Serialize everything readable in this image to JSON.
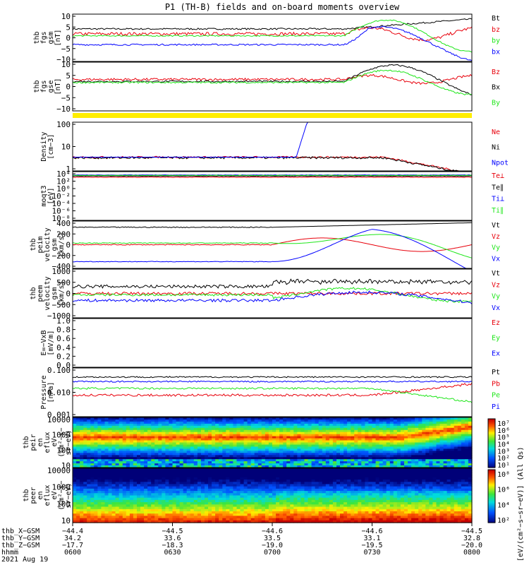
{
  "title": "P1 (TH-B) fields and on-board moments overview",
  "colors": {
    "black": "#000000",
    "red": "#e8000b",
    "green": "#1ee619",
    "blue": "#0000ff",
    "yellow": "#ffee00"
  },
  "chart_data": [
    {
      "type": "line",
      "ylabel_lines": [
        "thb",
        "fgs",
        "gsm",
        "[nT]"
      ],
      "yticks": [
        "10",
        "5",
        "0",
        "−5",
        "−10"
      ],
      "ylim": [
        -12,
        12
      ],
      "series": [
        {
          "name": "Bt",
          "color": "black",
          "base": 4.5,
          "jitter": 0.4,
          "late": "rise",
          "late_amp": 5
        },
        {
          "name": "bz",
          "color": "red",
          "base": 2.0,
          "jitter": 0.8,
          "late": "wave2",
          "late_amp": 3
        },
        {
          "name": "by",
          "color": "green",
          "base": 1.0,
          "jitter": 0.3,
          "late": "wave",
          "late_amp": 8
        },
        {
          "name": "bx",
          "color": "blue",
          "base": -3.5,
          "jitter": 0.4,
          "late": "wave3",
          "late_amp": 9
        }
      ]
    },
    {
      "type": "line",
      "ylabel_lines": [
        "thb",
        "fgs",
        "gse",
        "[nT]"
      ],
      "yticks": [
        "10",
        "5",
        "0",
        "−5",
        "−10"
      ],
      "ylim": [
        -12,
        12
      ],
      "series": [
        {
          "name": "Bz",
          "color": "red",
          "base": 3.5,
          "jitter": 0.6,
          "late": "wave2",
          "late_amp": 2
        },
        {
          "name": "Bx",
          "color": "black",
          "base": 2.5,
          "jitter": 0.4,
          "late": "wave3n",
          "late_amp": 8
        },
        {
          "name": "By",
          "color": "green",
          "base": 2.0,
          "jitter": 0.4,
          "late": "wave",
          "late_amp": 6
        }
      ]
    },
    {
      "type": "log",
      "ylabel_lines": [
        "Density",
        "[cm−3]"
      ],
      "yticks": [
        "100",
        "10",
        "1"
      ],
      "ylim_log": [
        0,
        2.3
      ],
      "series": [
        {
          "name": "Ne",
          "color": "red",
          "base": 0.65,
          "jitter": 0.04
        },
        {
          "name": "Ni",
          "color": "black",
          "base": 0.62,
          "jitter": 0.05
        },
        {
          "name": "Npot",
          "color": "blue",
          "base": 0.65,
          "jitter": 0.0
        }
      ]
    },
    {
      "type": "log",
      "ylabel_lines": [
        "moqt3",
        "[eV]"
      ],
      "yticks": [
        "10⁴",
        "10²",
        "10⁰",
        "10⁻²",
        "10⁻⁴",
        "10⁻⁶",
        "10⁻⁸"
      ],
      "ylim_log": [
        -8.5,
        4.5
      ],
      "series": [
        {
          "name": "Te⊥",
          "color": "red",
          "base": 3.0,
          "jitter": 0.05
        },
        {
          "name": "Te∥",
          "color": "black",
          "base": 3.3,
          "jitter": 0.05
        },
        {
          "name": "Ti⊥",
          "color": "blue",
          "base": 3.6,
          "jitter": 0.05
        },
        {
          "name": "Ti∥",
          "color": "green",
          "base": 3.5,
          "jitter": 0.05
        }
      ]
    },
    {
      "type": "line",
      "ylabel_lines": [
        "thb",
        "peim",
        "velocity",
        "gsm",
        "[km/s]"
      ],
      "yticks": [
        "400",
        "200",
        "0",
        "−200",
        "−400"
      ],
      "ylim": [
        -420,
        420
      ],
      "series": [
        {
          "name": "Vt",
          "color": "black",
          "base": 310,
          "jitter": 8
        },
        {
          "name": "Vz",
          "color": "red",
          "base": 0,
          "jitter": 8
        },
        {
          "name": "Vy",
          "color": "green",
          "base": 30,
          "jitter": 6
        },
        {
          "name": "Vx",
          "color": "blue",
          "base": -300,
          "jitter": 6
        }
      ]
    },
    {
      "type": "line",
      "ylabel_lines": [
        "thb",
        "peem",
        "velocity",
        "gsm",
        "[km/s]"
      ],
      "yticks": [
        "1000",
        "500",
        "0",
        "−500",
        "−1000"
      ],
      "ylim": [
        -1050,
        1050
      ],
      "series": [
        {
          "name": "Vt",
          "color": "black",
          "base": 300,
          "jitter": 70
        },
        {
          "name": "Vz",
          "color": "red",
          "base": 0,
          "jitter": 60
        },
        {
          "name": "Vy",
          "color": "green",
          "base": -60,
          "jitter": 50
        },
        {
          "name": "Vx",
          "color": "blue",
          "base": -300,
          "jitter": 60
        }
      ]
    },
    {
      "type": "empty",
      "ylabel_lines": [
        "E=−VxB",
        "[mV/m]"
      ],
      "yticks": [
        "1.0",
        "0.8",
        "0.6",
        "0.4",
        "0.2",
        "0.0"
      ],
      "ylim": [
        0,
        1
      ],
      "series": [
        {
          "name": "Ez",
          "color": "red"
        },
        {
          "name": "Ey",
          "color": "green"
        },
        {
          "name": "Ex",
          "color": "blue"
        }
      ]
    },
    {
      "type": "log",
      "ylabel_lines": [
        "Pressure",
        "[nPa]"
      ],
      "yticks": [
        "0.100",
        "0.010",
        "0.001"
      ],
      "ylim_log": [
        -3,
        -0.85
      ],
      "series": [
        {
          "name": "Pt",
          "color": "black",
          "base": -1.25,
          "jitter": 0.03
        },
        {
          "name": "Pb",
          "color": "red",
          "base": -2.05,
          "jitter": 0.05
        },
        {
          "name": "Pe",
          "color": "green",
          "base": -1.75,
          "jitter": 0.04
        },
        {
          "name": "Pi",
          "color": "blue",
          "base": -1.45,
          "jitter": 0.03
        }
      ]
    },
    {
      "type": "heatmap",
      "ylabel_lines": [
        "thb",
        "peir",
        "en",
        "eflux",
        "eV",
        "(cm²−s−",
        "sr−eV)"
      ],
      "yticks": [
        "10000",
        "1000",
        "100",
        "10"
      ],
      "ylim_log": [
        0.7,
        4.3
      ],
      "profile": "ion"
    },
    {
      "type": "heatmap",
      "ylabel_lines": [
        "thb",
        "peer",
        "en",
        "eflux",
        "eV",
        "(cm²−s−",
        "sr−eV)"
      ],
      "yticks": [
        "10000",
        "1000",
        "100",
        "10"
      ],
      "ylim_log": [
        0.7,
        4.3
      ],
      "profile": "electron"
    }
  ],
  "colorbar": {
    "label": "[eV/(cm²−s−sr−eV)] (All Qs)",
    "upper_ticks": [
      "10⁷",
      "10⁶",
      "10⁵",
      "10⁴",
      "10³",
      "10²",
      "10¹"
    ],
    "lower_ticks": [
      "10⁸",
      "10⁶",
      "10⁴",
      "10²"
    ]
  },
  "footer": {
    "row_labels": [
      "thb_X−GSM",
      "thb_Y−GSM",
      "thb_Z−GSM",
      "hhmm",
      "2021 Aug 19"
    ],
    "columns": [
      {
        "x": "−44.4",
        "y": "34.2",
        "z": "−17.7",
        "time": "0600"
      },
      {
        "x": "−44.5",
        "y": "33.6",
        "z": "−18.3",
        "time": "0630"
      },
      {
        "x": "−44.6",
        "y": "33.5",
        "z": "−19.0",
        "time": "0700"
      },
      {
        "x": "−44.6",
        "y": "33.1",
        "z": "−19.5",
        "time": "0730"
      },
      {
        "x": "−44.5",
        "y": "32.8",
        "z": "−20.0",
        "time": "0800"
      }
    ]
  }
}
